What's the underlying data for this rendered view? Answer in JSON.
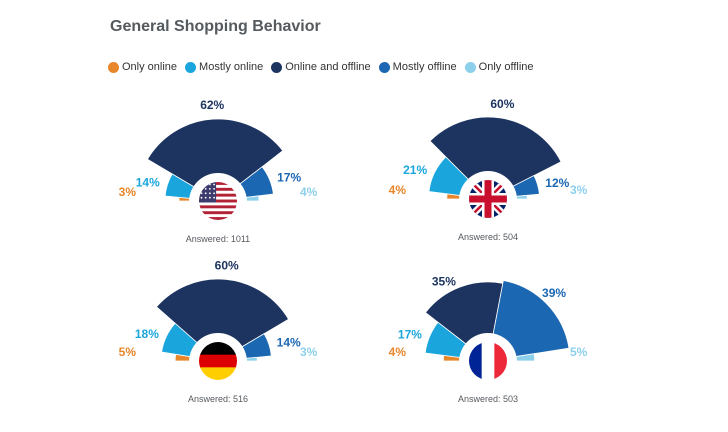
{
  "title": "General Shopping Behavior",
  "legend": [
    {
      "label": "Only online",
      "color": "#e8862a"
    },
    {
      "label": "Mostly online",
      "color": "#1aa6dd"
    },
    {
      "label": "Online and offline",
      "color": "#1d3461"
    },
    {
      "label": "Mostly offline",
      "color": "#1b67b1"
    },
    {
      "label": "Only offline",
      "color": "#8dd0ec"
    }
  ],
  "chart_data": [
    {
      "type": "semi-donut",
      "country_flag": "usa-flag",
      "answered_label": "Answered: 1011",
      "categories": [
        "Only online",
        "Mostly online",
        "Online and offline",
        "Mostly offline",
        "Only offline"
      ],
      "values": [
        3,
        14,
        62,
        17,
        4
      ],
      "value_labels": [
        "3%",
        "14%",
        "62%",
        "17%",
        "4%"
      ]
    },
    {
      "type": "semi-donut",
      "country_flag": "uk-flag",
      "answered_label": "Answered: 504",
      "categories": [
        "Only online",
        "Mostly online",
        "Online and offline",
        "Mostly offline",
        "Only offline"
      ],
      "values": [
        4,
        21,
        60,
        12,
        3
      ],
      "value_labels": [
        "4%",
        "21%",
        "60%",
        "12%",
        "3%"
      ]
    },
    {
      "type": "semi-donut",
      "country_flag": "germany-flag",
      "answered_label": "Answered: 516",
      "categories": [
        "Only online",
        "Mostly online",
        "Online and offline",
        "Mostly offline",
        "Only offline"
      ],
      "values": [
        5,
        18,
        60,
        14,
        3
      ],
      "value_labels": [
        "5%",
        "18%",
        "60%",
        "14%",
        "3%"
      ]
    },
    {
      "type": "semi-donut",
      "country_flag": "france-flag",
      "answered_label": "Answered: 503",
      "categories": [
        "Only online",
        "Mostly online",
        "Online and offline",
        "Mostly offline",
        "Only offline"
      ],
      "values": [
        4,
        17,
        35,
        39,
        5
      ],
      "value_labels": [
        "4%",
        "17%",
        "35%",
        "39%",
        "5%"
      ]
    }
  ]
}
